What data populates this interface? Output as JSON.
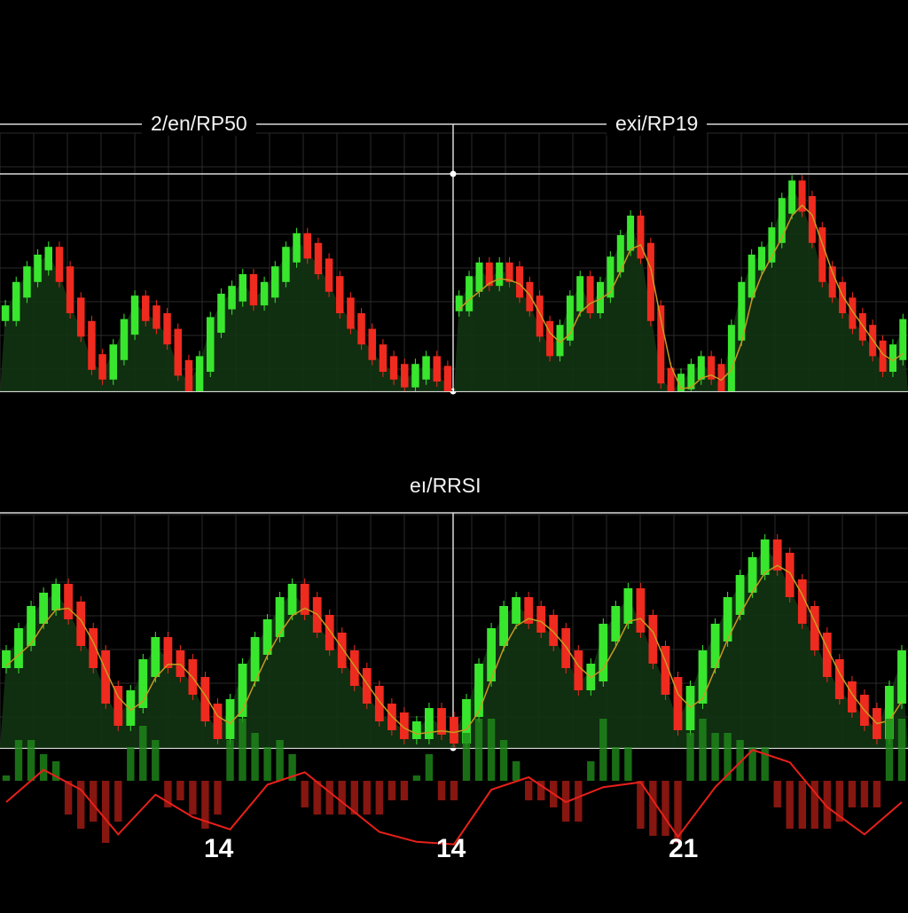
{
  "colors": {
    "background": "#000000",
    "grid": "#2a2a2a",
    "frame": "#d9d9d9",
    "up": "#39e62e",
    "down": "#ef2a1e",
    "area_fill": "#123312",
    "ma_line": "#c89a20",
    "rsi_line": "#e8201a"
  },
  "chart_data": [
    {
      "type": "candlestick",
      "panel": "top-left",
      "title": "2/en/RP50",
      "y": [
        40,
        52,
        60,
        66,
        70,
        60,
        44,
        32,
        15,
        10,
        20,
        33,
        45,
        40,
        36,
        28,
        12,
        4,
        14,
        34,
        46,
        50,
        56,
        48,
        52,
        60,
        70,
        77,
        72,
        64,
        55,
        44,
        36,
        28,
        20,
        14,
        10,
        6,
        10,
        14,
        9,
        3
      ]
    },
    {
      "type": "candlestick",
      "panel": "top-right",
      "title": "exi/RP19",
      "y": [
        45,
        55,
        62,
        58,
        62,
        60,
        52,
        45,
        32,
        22,
        30,
        45,
        55,
        44,
        52,
        65,
        76,
        86,
        72,
        40,
        8,
        0,
        5,
        10,
        14,
        10,
        2,
        30,
        52,
        66,
        70,
        80,
        95,
        104,
        96,
        80,
        60,
        52,
        44,
        36,
        30,
        22,
        14,
        20,
        33
      ]
    },
    {
      "type": "candlestick",
      "panel": "bottom",
      "title": "eı/RRSI",
      "y": [
        40,
        50,
        60,
        66,
        70,
        62,
        50,
        40,
        24,
        14,
        22,
        36,
        46,
        40,
        36,
        28,
        16,
        8,
        18,
        34,
        46,
        54,
        64,
        70,
        64,
        56,
        48,
        40,
        32,
        24,
        16,
        12,
        8,
        8,
        14,
        10,
        6,
        18,
        34,
        50,
        60,
        64,
        60,
        56,
        50,
        40,
        30,
        34,
        52,
        60,
        68,
        56,
        42,
        28,
        12,
        24,
        40,
        52,
        64,
        74,
        82,
        90,
        84,
        72,
        60,
        48,
        36,
        26,
        20,
        14,
        8,
        24,
        40
      ],
      "x_tick_labels": [
        "14",
        "14",
        "21"
      ]
    }
  ]
}
